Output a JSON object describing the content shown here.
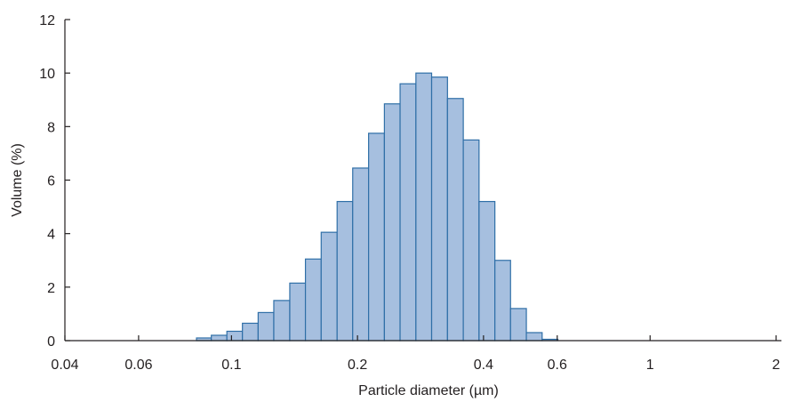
{
  "chart_data": {
    "type": "bar",
    "title": "",
    "xlabel": "Particle diameter (µm)",
    "ylabel": "Volume (%)",
    "xscale": "log",
    "xlim": [
      0.04,
      2.0
    ],
    "ylim": [
      0,
      12
    ],
    "grid": false,
    "legend": "none",
    "bar_fill": "#a6bfdf",
    "bar_edge": "#2f6fa7",
    "axis_color": "#231f20",
    "x_ticks": [
      {
        "value": 0.04,
        "label": "0.04"
      },
      {
        "value": 0.06,
        "label": "0.06"
      },
      {
        "value": 0.1,
        "label": "0.1"
      },
      {
        "value": 0.2,
        "label": "0.2"
      },
      {
        "value": 0.4,
        "label": "0.4"
      },
      {
        "value": 0.6,
        "label": "0.6"
      },
      {
        "value": 1,
        "label": "1"
      },
      {
        "value": 2,
        "label": "2"
      }
    ],
    "y_ticks": [
      {
        "value": 0,
        "label": "0"
      },
      {
        "value": 2,
        "label": "2"
      },
      {
        "value": 4,
        "label": "4"
      },
      {
        "value": 6,
        "label": "6"
      },
      {
        "value": 8,
        "label": "8"
      },
      {
        "value": 10,
        "label": "10"
      },
      {
        "value": 12,
        "label": "12"
      }
    ],
    "bins": [
      {
        "x0": 0.0825,
        "x1": 0.0895,
        "y": 0.1
      },
      {
        "x0": 0.0895,
        "x1": 0.0975,
        "y": 0.2
      },
      {
        "x0": 0.0975,
        "x1": 0.1062,
        "y": 0.35
      },
      {
        "x0": 0.1062,
        "x1": 0.1158,
        "y": 0.65
      },
      {
        "x0": 0.1158,
        "x1": 0.1262,
        "y": 1.05
      },
      {
        "x0": 0.1262,
        "x1": 0.1378,
        "y": 1.5
      },
      {
        "x0": 0.1378,
        "x1": 0.1502,
        "y": 2.15
      },
      {
        "x0": 0.1502,
        "x1": 0.1638,
        "y": 3.05
      },
      {
        "x0": 0.1638,
        "x1": 0.1788,
        "y": 4.05
      },
      {
        "x0": 0.1788,
        "x1": 0.1948,
        "y": 5.2
      },
      {
        "x0": 0.1948,
        "x1": 0.2126,
        "y": 6.45
      },
      {
        "x0": 0.2126,
        "x1": 0.2319,
        "y": 7.75
      },
      {
        "x0": 0.2319,
        "x1": 0.2528,
        "y": 8.85
      },
      {
        "x0": 0.2528,
        "x1": 0.2758,
        "y": 9.6
      },
      {
        "x0": 0.2758,
        "x1": 0.3007,
        "y": 10.0
      },
      {
        "x0": 0.3007,
        "x1": 0.3281,
        "y": 9.85
      },
      {
        "x0": 0.3281,
        "x1": 0.3579,
        "y": 9.05
      },
      {
        "x0": 0.3579,
        "x1": 0.3903,
        "y": 7.5
      },
      {
        "x0": 0.3903,
        "x1": 0.4258,
        "y": 5.2
      },
      {
        "x0": 0.4258,
        "x1": 0.4641,
        "y": 3.0
      },
      {
        "x0": 0.4641,
        "x1": 0.5063,
        "y": 1.2
      },
      {
        "x0": 0.5063,
        "x1": 0.5522,
        "y": 0.3
      },
      {
        "x0": 0.5522,
        "x1": 0.6023,
        "y": 0.05
      }
    ]
  }
}
